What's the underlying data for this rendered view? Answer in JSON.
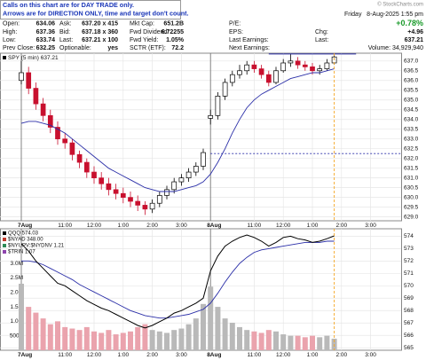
{
  "header": {
    "notice": [
      "Calls on this chart are for DAY TRADE only.",
      "Arrows are for DIRECTION ONLY, time and target don't count."
    ],
    "copyright": "© StockCharts.com",
    "day": "Friday",
    "datetime": "8-Aug-2025 1:55 pm",
    "change_pct": "+0.78%",
    "columns": [
      [
        {
          "label": "Open:",
          "value": "634.06"
        },
        {
          "label": "High:",
          "value": "637.36"
        },
        {
          "label": "Low:",
          "value": "633.74"
        },
        {
          "label": "Prev Close:",
          "value": "632.25"
        }
      ],
      [
        {
          "label": "Ask:",
          "value": "637.20 x 415"
        },
        {
          "label": "Bid:",
          "value": "637.18 x 360"
        },
        {
          "label": "Last:",
          "value": "637.21 x 100"
        },
        {
          "label": "Optionable:",
          "value": "yes"
        }
      ],
      [
        {
          "label": "Mkt Cap:",
          "value": "651.2B"
        },
        {
          "label": "Fwd Dividend:",
          "value": "6.72255"
        },
        {
          "label": "Fwd Yield:",
          "value": "1.05%"
        },
        {
          "label": "SCTR (ETF):",
          "value": "72.2"
        }
      ],
      [
        {
          "label": "P/E:"
        },
        {
          "label": "EPS:"
        },
        {
          "label": "Last Earnings:"
        },
        {
          "label": "Next Earnings:"
        }
      ],
      [
        {
          "label": "Chg:",
          "value": "+4.96"
        },
        {
          "label": "Last:",
          "value": "637.21"
        },
        {
          "text": "Volume: 34,929,940"
        }
      ]
    ]
  },
  "chart_data": [
    {
      "type": "candlestick",
      "name": "SPY (5 min) 637.21",
      "categories": [
        "7Aug 9:30",
        "7Aug 9:45",
        "7Aug 10:00",
        "7Aug 10:15",
        "7Aug 10:30",
        "7Aug 10:45",
        "7Aug 11:00",
        "7Aug 11:15",
        "7Aug 11:30",
        "7Aug 11:45",
        "7Aug 12:00",
        "7Aug 12:15",
        "7Aug 12:30",
        "7Aug 12:45",
        "7Aug 1:00",
        "7Aug 1:15",
        "7Aug 1:30",
        "7Aug 1:45",
        "7Aug 2:00",
        "7Aug 2:15",
        "7Aug 2:30",
        "7Aug 2:45",
        "7Aug 3:00",
        "7Aug 3:15",
        "7Aug 3:30",
        "7Aug 3:45",
        "8Aug 9:30",
        "8Aug 9:45",
        "8Aug 10:00",
        "8Aug 10:15",
        "8Aug 10:30",
        "8Aug 10:45",
        "8Aug 11:00",
        "8Aug 11:15",
        "8Aug 11:30",
        "8Aug 11:45",
        "8Aug 12:00",
        "8Aug 12:15",
        "8Aug 12:30",
        "8Aug 12:45",
        "8Aug 1:00",
        "8Aug 1:15",
        "8Aug 1:30",
        "8Aug 1:45",
        "8Aug 2:00",
        "8Aug 2:15",
        "8Aug 2:30",
        "8Aug 2:45",
        "8Aug 3:00",
        "8Aug 3:15",
        "8Aug 3:30",
        "8Aug 3:45"
      ],
      "open": [
        636.0,
        636.4,
        635.6,
        634.8,
        634.2,
        633.6,
        633.0,
        632.8,
        632.2,
        631.8,
        631.3,
        631.0,
        630.7,
        630.4,
        630.2,
        630.0,
        629.8,
        629.6,
        629.4,
        629.7,
        630.1,
        630.4,
        630.8,
        631.0,
        631.3,
        631.6,
        634.06,
        634.2,
        635.2,
        635.9,
        636.3,
        636.5,
        636.8,
        636.6,
        636.3,
        635.9,
        636.5,
        636.9,
        637.0,
        636.8,
        636.7,
        636.5,
        636.6,
        636.9,
        null,
        null,
        null,
        null,
        null,
        null,
        null,
        null
      ],
      "high": [
        637.0,
        636.7,
        635.9,
        635.1,
        634.5,
        633.9,
        633.3,
        633.0,
        632.4,
        632.0,
        631.6,
        631.3,
        631.0,
        630.7,
        630.5,
        630.3,
        630.1,
        629.8,
        629.9,
        630.3,
        630.6,
        631.0,
        631.2,
        631.5,
        631.8,
        632.5,
        634.5,
        635.4,
        636.1,
        636.5,
        636.8,
        637.0,
        637.0,
        636.8,
        636.5,
        636.7,
        637.1,
        637.36,
        637.2,
        637.0,
        636.9,
        636.8,
        637.1,
        637.3,
        null,
        null,
        null,
        null,
        null,
        null,
        null,
        null
      ],
      "low": [
        635.8,
        635.3,
        634.5,
        633.9,
        633.3,
        632.7,
        632.5,
        631.9,
        631.5,
        631.0,
        630.7,
        630.4,
        630.1,
        629.9,
        629.7,
        629.5,
        629.3,
        629.1,
        629.2,
        629.5,
        629.9,
        630.2,
        630.6,
        630.8,
        631.1,
        631.4,
        633.74,
        634.0,
        635.0,
        635.7,
        636.1,
        636.3,
        636.4,
        636.1,
        635.7,
        635.8,
        636.4,
        636.7,
        636.6,
        636.5,
        636.3,
        636.3,
        636.5,
        636.8,
        null,
        null,
        null,
        null,
        null,
        null,
        null,
        null
      ],
      "close": [
        636.4,
        635.6,
        634.8,
        634.2,
        633.6,
        633.0,
        632.8,
        632.2,
        631.8,
        631.3,
        631.0,
        630.7,
        630.4,
        630.2,
        630.0,
        629.8,
        629.6,
        629.4,
        629.7,
        630.1,
        630.4,
        630.8,
        631.0,
        631.3,
        631.6,
        632.3,
        634.2,
        635.2,
        635.9,
        636.3,
        636.5,
        636.8,
        636.6,
        636.3,
        635.9,
        636.5,
        636.9,
        637.0,
        636.8,
        636.7,
        636.5,
        636.6,
        636.9,
        637.21,
        null,
        null,
        null,
        null,
        null,
        null,
        null,
        null
      ],
      "ma": {
        "color": "#2b2fa8",
        "values": [
          633.8,
          633.9,
          633.9,
          633.8,
          633.7,
          633.5,
          633.3,
          633.0,
          632.7,
          632.4,
          632.1,
          631.8,
          631.5,
          631.3,
          631.1,
          630.9,
          630.7,
          630.5,
          630.4,
          630.3,
          630.3,
          630.3,
          630.4,
          630.5,
          630.6,
          630.8,
          631.2,
          631.8,
          632.5,
          633.3,
          634.0,
          634.6,
          635.0,
          635.3,
          635.5,
          635.7,
          635.9,
          636.1,
          636.2,
          636.3,
          636.4,
          636.4,
          636.5,
          636.6,
          null,
          null,
          null,
          null,
          null,
          null,
          null,
          null
        ]
      },
      "up_color": "#000000",
      "down_color": "#c8102e",
      "ylim": [
        628.8,
        637.4
      ],
      "yticks": [
        {
          "value": 629,
          "label": "629.0"
        },
        {
          "value": 629.5,
          "label": "629.5"
        },
        {
          "value": 630,
          "label": "630.0"
        },
        {
          "value": 630.5,
          "label": "630.5"
        },
        {
          "value": 631,
          "label": "631.0"
        },
        {
          "value": 631.5,
          "label": "631.5"
        },
        {
          "value": 632,
          "label": "632.0"
        },
        {
          "value": 632.5,
          "label": "632.5"
        },
        {
          "value": 633,
          "label": "633.0"
        },
        {
          "value": 633.5,
          "label": "633.5"
        },
        {
          "value": 634,
          "label": "634.0"
        },
        {
          "value": 634.5,
          "label": "634.5"
        },
        {
          "value": 635,
          "label": "635.0"
        },
        {
          "value": 635.5,
          "label": "635.5"
        },
        {
          "value": 636,
          "label": "636.0"
        },
        {
          "value": 636.5,
          "label": "636.5"
        },
        {
          "value": 637,
          "label": "637.0"
        }
      ],
      "xticks": [
        {
          "value": "7Aug 9:30",
          "label": "7Aug"
        },
        {
          "value": "7Aug 11:00",
          "label": "11:00"
        },
        {
          "value": "7Aug 12:00",
          "label": "12:00"
        },
        {
          "value": "7Aug 1:00",
          "label": "1:00"
        },
        {
          "value": "7Aug 2:00",
          "label": "2:00"
        },
        {
          "value": "7Aug 3:00",
          "label": "3:00"
        },
        {
          "value": "8Aug 9:30",
          "label": "8Aug"
        },
        {
          "value": "8Aug 11:00",
          "label": "11:00"
        },
        {
          "value": "8Aug 12:00",
          "label": "12:00"
        },
        {
          "value": "8Aug 1:00",
          "label": "1:00"
        },
        {
          "value": "8Aug 2:00",
          "label": "2:00"
        },
        {
          "value": "8Aug 3:00",
          "label": "3:00"
        }
      ],
      "grid": true
    },
    {
      "type": "line",
      "categories": [
        "7Aug 9:30",
        "7Aug 9:45",
        "7Aug 10:00",
        "7Aug 10:15",
        "7Aug 10:30",
        "7Aug 10:45",
        "7Aug 11:00",
        "7Aug 11:15",
        "7Aug 11:30",
        "7Aug 11:45",
        "7Aug 12:00",
        "7Aug 12:15",
        "7Aug 12:30",
        "7Aug 12:45",
        "7Aug 1:00",
        "7Aug 1:15",
        "7Aug 1:30",
        "7Aug 1:45",
        "7Aug 2:00",
        "7Aug 2:15",
        "7Aug 2:30",
        "7Aug 2:45",
        "7Aug 3:00",
        "7Aug 3:15",
        "7Aug 3:30",
        "7Aug 3:45",
        "8Aug 9:30",
        "8Aug 9:45",
        "8Aug 10:00",
        "8Aug 10:15",
        "8Aug 10:30",
        "8Aug 10:45",
        "8Aug 11:00",
        "8Aug 11:15",
        "8Aug 11:30",
        "8Aug 11:45",
        "8Aug 12:00",
        "8Aug 12:15",
        "8Aug 12:30",
        "8Aug 12:45",
        "8Aug 1:00",
        "8Aug 1:15",
        "8Aug 1:30",
        "8Aug 1:45",
        "8Aug 2:00",
        "8Aug 2:15",
        "8Aug 2:30",
        "8Aug 2:45",
        "8Aug 3:00",
        "8Aug 3:15",
        "8Aug 3:30",
        "8Aug 3:45"
      ],
      "series": [
        {
          "name": "QQQ 574.03",
          "color": "#000000",
          "values": [
            573.4,
            572.8,
            572.0,
            571.4,
            570.8,
            570.2,
            570.0,
            569.6,
            569.2,
            568.8,
            568.5,
            568.2,
            568.0,
            567.7,
            567.4,
            567.1,
            566.8,
            566.6,
            566.8,
            567.1,
            567.4,
            567.8,
            568.0,
            568.3,
            568.6,
            569.0,
            571.2,
            572.4,
            573.2,
            573.6,
            573.9,
            574.1,
            573.9,
            573.6,
            573.2,
            573.5,
            573.9,
            574.0,
            573.8,
            573.7,
            573.5,
            573.6,
            573.8,
            574.03,
            null,
            null,
            null,
            null,
            null,
            null,
            null,
            null
          ]
        }
      ],
      "indicators": [
        {
          "name": "$NYAD 348.00",
          "color": "#c0392b"
        },
        {
          "name": "$NYUPV:$NYDNV 1.21",
          "color": "#2e8b57"
        },
        {
          "name": "$TRIN 1.07",
          "color": "#8e44ad"
        }
      ],
      "ma": {
        "color": "#2b2fa8",
        "values": [
          572.0,
          572.0,
          571.9,
          571.7,
          571.4,
          571.1,
          570.8,
          570.5,
          570.1,
          569.8,
          569.5,
          569.2,
          568.9,
          568.6,
          568.3,
          568.0,
          567.8,
          567.6,
          567.5,
          567.4,
          567.4,
          567.5,
          567.6,
          567.7,
          567.9,
          568.1,
          568.6,
          569.4,
          570.3,
          571.1,
          571.8,
          572.3,
          572.7,
          572.9,
          573.0,
          573.1,
          573.2,
          573.3,
          573.4,
          573.5,
          573.5,
          573.5,
          573.6,
          573.6,
          null,
          null,
          null,
          null,
          null,
          null,
          null,
          null
        ]
      },
      "volume": {
        "axis": "y2",
        "up_color": "#b9b9b9",
        "down_color": "#eaa3ad",
        "values": [
          2300000,
          1500000,
          1300000,
          1100000,
          900000,
          1000000,
          800000,
          750000,
          700000,
          800000,
          650000,
          600000,
          700000,
          550000,
          600000,
          650000,
          800000,
          900000,
          700000,
          650000,
          600000,
          700000,
          750000,
          900000,
          1100000,
          1600000,
          2200000,
          1500000,
          1100000,
          950000,
          800000,
          700000,
          650000,
          600000,
          700000,
          650000,
          550000,
          500000,
          500000,
          450000,
          500000,
          450000,
          500000,
          400000,
          null,
          null,
          null,
          null,
          null,
          null,
          null,
          null
        ]
      },
      "ylim": [
        564.8,
        574.6
      ],
      "yticks": [
        565,
        566,
        567,
        568,
        569,
        570,
        571,
        572,
        573,
        574
      ],
      "y2lim": [
        0,
        4200000
      ],
      "y2ticks": [
        {
          "value": 500000,
          "label": "500K"
        },
        {
          "value": 1000000,
          "label": "1.0M"
        },
        {
          "value": 1500000,
          "label": "1.5M"
        },
        {
          "value": 2000000,
          "label": "2.0M"
        },
        {
          "value": 2500000,
          "label": "2.5M"
        },
        {
          "value": 3000000,
          "label": "3.0M"
        }
      ],
      "xticks": [
        {
          "value": "7Aug 9:30",
          "label": "7Aug"
        },
        {
          "value": "7Aug 11:00",
          "label": "11:00"
        },
        {
          "value": "7Aug 12:00",
          "label": "12:00"
        },
        {
          "value": "7Aug 1:00",
          "label": "1:00"
        },
        {
          "value": "7Aug 2:00",
          "label": "2:00"
        },
        {
          "value": "7Aug 3:00",
          "label": "3:00"
        },
        {
          "value": "8Aug 9:30",
          "label": "8Aug"
        },
        {
          "value": "8Aug 11:00",
          "label": "11:00"
        },
        {
          "value": "8Aug 12:00",
          "label": "12:00"
        },
        {
          "value": "8Aug 1:00",
          "label": "1:00"
        },
        {
          "value": "8Aug 2:00",
          "label": "2:00"
        },
        {
          "value": "8Aug 3:00",
          "label": "3:00"
        }
      ],
      "grid": true
    }
  ]
}
